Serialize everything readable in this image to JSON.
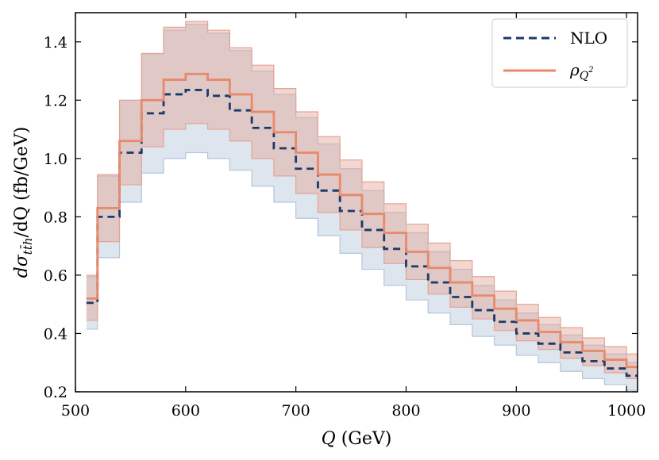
{
  "chart_data": {
    "type": "step",
    "title": "",
    "xlabel": "Q (GeV)",
    "ylabel": "dσ_{tt̄h}/dQ (fb/GeV)",
    "xlim": [
      500,
      1010
    ],
    "ylim": [
      0.2,
      1.5
    ],
    "xticks": [
      500,
      600,
      700,
      800,
      900,
      1000
    ],
    "yticks": [
      0.2,
      0.4,
      0.6,
      0.8,
      1.0,
      1.2,
      1.4
    ],
    "xtick_labels": [
      "500",
      "600",
      "700",
      "800",
      "900",
      "1000"
    ],
    "ytick_labels": [
      "0.2",
      "0.4",
      "0.6",
      "0.8",
      "1.0",
      "1.2",
      "1.4"
    ],
    "bin_edges": [
      510,
      520,
      540,
      560,
      580,
      600,
      620,
      640,
      660,
      680,
      700,
      720,
      740,
      760,
      780,
      800,
      820,
      840,
      860,
      880,
      900,
      920,
      940,
      960,
      980,
      1000,
      1010
    ],
    "legend_position": "top-right",
    "series": [
      {
        "name": "NLO",
        "color": "#1a3a6b",
        "band_color": "#b4c6da",
        "line_style": "dashed",
        "values": [
          0.505,
          0.8,
          1.02,
          1.155,
          1.22,
          1.235,
          1.215,
          1.165,
          1.105,
          1.035,
          0.965,
          0.89,
          0.82,
          0.755,
          0.69,
          0.63,
          0.575,
          0.525,
          0.48,
          0.44,
          0.4,
          0.365,
          0.335,
          0.305,
          0.28,
          0.255
        ],
        "band_low": [
          0.415,
          0.66,
          0.85,
          0.95,
          1.0,
          1.02,
          1.0,
          0.96,
          0.905,
          0.85,
          0.795,
          0.735,
          0.675,
          0.62,
          0.565,
          0.515,
          0.47,
          0.43,
          0.39,
          0.36,
          0.325,
          0.3,
          0.27,
          0.245,
          0.225,
          0.205
        ],
        "band_high": [
          0.595,
          0.94,
          1.2,
          1.36,
          1.44,
          1.46,
          1.43,
          1.37,
          1.3,
          1.22,
          1.14,
          1.05,
          0.965,
          0.89,
          0.815,
          0.745,
          0.68,
          0.62,
          0.565,
          0.515,
          0.47,
          0.43,
          0.395,
          0.36,
          0.33,
          0.3
        ]
      },
      {
        "name": "ρ_{Q²}",
        "color": "#e8896a",
        "band_color": "#e3a595",
        "line_style": "solid",
        "values": [
          0.52,
          0.83,
          1.06,
          1.2,
          1.27,
          1.29,
          1.27,
          1.22,
          1.16,
          1.09,
          1.02,
          0.945,
          0.875,
          0.81,
          0.745,
          0.68,
          0.625,
          0.575,
          0.53,
          0.485,
          0.445,
          0.405,
          0.37,
          0.34,
          0.31,
          0.285
        ],
        "band_low": [
          0.445,
          0.715,
          0.91,
          1.04,
          1.1,
          1.12,
          1.1,
          1.06,
          1.0,
          0.94,
          0.88,
          0.815,
          0.755,
          0.695,
          0.64,
          0.585,
          0.535,
          0.49,
          0.45,
          0.41,
          0.375,
          0.345,
          0.315,
          0.29,
          0.265,
          0.245
        ],
        "band_high": [
          0.6,
          0.945,
          1.2,
          1.36,
          1.45,
          1.47,
          1.44,
          1.38,
          1.32,
          1.24,
          1.16,
          1.075,
          0.995,
          0.92,
          0.845,
          0.775,
          0.71,
          0.65,
          0.595,
          0.545,
          0.5,
          0.455,
          0.42,
          0.385,
          0.355,
          0.33
        ]
      }
    ]
  },
  "legend": {
    "nlo_label": "NLO",
    "rho_symbol": "ρ",
    "rho_subscript": "Q",
    "rho_superscript": "2"
  },
  "axes": {
    "xlabel_main": "Q",
    "xlabel_unit": "(GeV)",
    "ylabel_d1": "dσ",
    "ylabel_sub": "tt̄h",
    "ylabel_rest": "/dQ (fb/GeV)"
  }
}
